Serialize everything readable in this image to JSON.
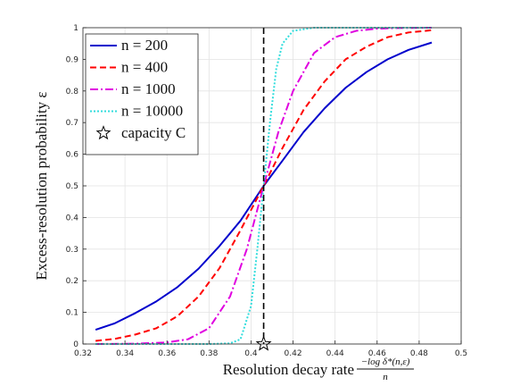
{
  "chart_data": {
    "type": "line",
    "xlabel": "Resolution decay rate",
    "xlabel_fraction": {
      "numerator": "−log δ*(n,ε)",
      "denominator": "n"
    },
    "ylabel": "Excess-resolution probability ε",
    "xlim": [
      0.32,
      0.5
    ],
    "ylim": [
      0,
      1
    ],
    "xticks": [
      "0.32",
      "0.34",
      "0.36",
      "0.38",
      "0.4",
      "0.42",
      "0.44",
      "0.46",
      "0.48",
      "0.5"
    ],
    "yticks": [
      "0",
      "0.1",
      "0.2",
      "0.3",
      "0.4",
      "0.5",
      "0.6",
      "0.7",
      "0.8",
      "0.9",
      "1"
    ],
    "grid": true,
    "legend_position": "top-left",
    "capacity_x": 0.406,
    "series": [
      {
        "name": "n = 200",
        "color": "#0000cc",
        "dash": "solid",
        "x": [
          0.326,
          0.335,
          0.345,
          0.355,
          0.365,
          0.375,
          0.385,
          0.395,
          0.406,
          0.415,
          0.425,
          0.435,
          0.445,
          0.455,
          0.465,
          0.475,
          0.486
        ],
        "y": [
          0.045,
          0.065,
          0.098,
          0.135,
          0.18,
          0.238,
          0.31,
          0.39,
          0.5,
          0.58,
          0.67,
          0.745,
          0.81,
          0.86,
          0.9,
          0.93,
          0.953
        ]
      },
      {
        "name": "n = 400",
        "color": "#ff0000",
        "dash": "dashed",
        "x": [
          0.326,
          0.335,
          0.345,
          0.355,
          0.365,
          0.375,
          0.385,
          0.395,
          0.406,
          0.415,
          0.425,
          0.435,
          0.445,
          0.455,
          0.465,
          0.475,
          0.486
        ],
        "y": [
          0.01,
          0.016,
          0.03,
          0.05,
          0.088,
          0.15,
          0.24,
          0.36,
          0.5,
          0.62,
          0.74,
          0.83,
          0.9,
          0.94,
          0.97,
          0.985,
          0.992
        ]
      },
      {
        "name": "n = 1000",
        "color": "#e000e0",
        "dash": "dashdot",
        "x": [
          0.326,
          0.345,
          0.36,
          0.37,
          0.38,
          0.39,
          0.398,
          0.406,
          0.413,
          0.42,
          0.43,
          0.44,
          0.45,
          0.46,
          0.47,
          0.486
        ],
        "y": [
          0.0,
          0.001,
          0.005,
          0.015,
          0.05,
          0.15,
          0.3,
          0.5,
          0.67,
          0.8,
          0.92,
          0.97,
          0.99,
          0.997,
          0.999,
          1.0
        ]
      },
      {
        "name": "n = 10000",
        "color": "#33dddd",
        "dash": "dotted",
        "x": [
          0.326,
          0.38,
          0.39,
          0.395,
          0.4,
          0.403,
          0.406,
          0.409,
          0.412,
          0.415,
          0.42,
          0.43,
          0.44,
          0.486
        ],
        "y": [
          0.0,
          0.0,
          0.002,
          0.015,
          0.12,
          0.3,
          0.5,
          0.7,
          0.87,
          0.95,
          0.99,
          1.0,
          1.0,
          1.0
        ]
      }
    ],
    "capacity_marker": {
      "label": "capacity C",
      "x": 0.406,
      "y": 0.0
    }
  }
}
